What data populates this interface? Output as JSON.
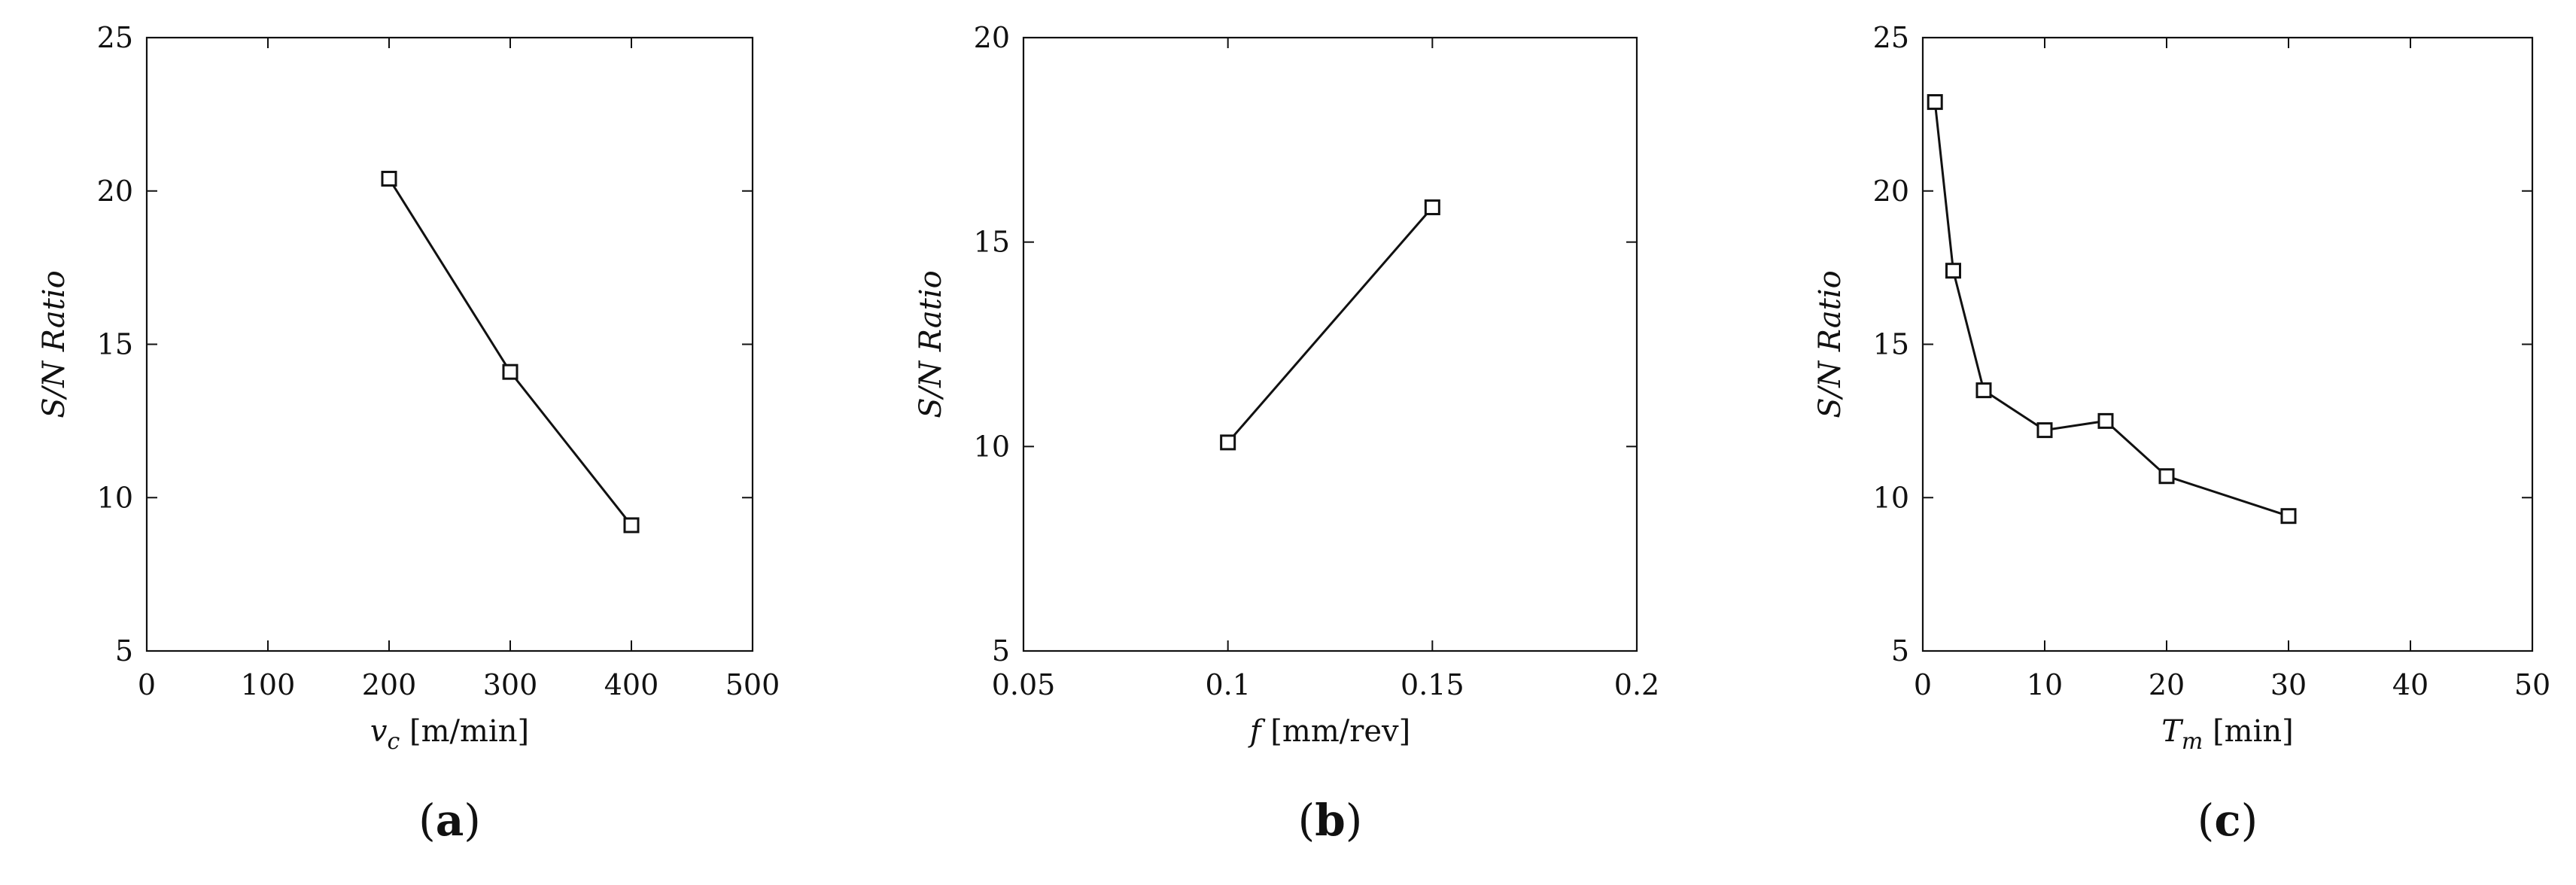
{
  "chart_data": [
    {
      "type": "line",
      "x": [
        200,
        300,
        400
      ],
      "series": [
        {
          "values": [
            20.4,
            14.1,
            9.1
          ]
        }
      ],
      "xlim": [
        0,
        500
      ],
      "ylim": [
        5,
        25
      ],
      "xticks": [
        0,
        100,
        200,
        300,
        400,
        500
      ],
      "yticks": [
        5,
        10,
        15,
        20,
        25
      ],
      "xtick_labels": [
        "0",
        "100",
        "200",
        "300",
        "400",
        "500"
      ],
      "ytick_labels": [
        "5",
        "10",
        "15",
        "20",
        "25"
      ],
      "ylabel": "S/N Ratio",
      "xlabel": {
        "var": "v",
        "sub": "c",
        "unit": " [m/min]"
      },
      "marker": "square",
      "grid": false,
      "caption": {
        "open": "(",
        "letter": "a",
        "close": ")"
      }
    },
    {
      "type": "line",
      "x": [
        0.1,
        0.15
      ],
      "series": [
        {
          "values": [
            10.1,
            15.85
          ]
        }
      ],
      "xlim": [
        0.05,
        0.2
      ],
      "ylim": [
        5,
        20
      ],
      "xticks": [
        0.05,
        0.1,
        0.15,
        0.2
      ],
      "yticks": [
        5,
        10,
        15,
        20
      ],
      "xtick_labels": [
        "0.05",
        "0.1",
        "0.15",
        "0.2"
      ],
      "ytick_labels": [
        "5",
        "10",
        "15",
        "20"
      ],
      "ylabel": "S/N Ratio",
      "xlabel": {
        "var": "f",
        "sub": "",
        "unit": " [mm/rev]"
      },
      "marker": "square",
      "grid": false,
      "caption": {
        "open": "(",
        "letter": "b",
        "close": ")"
      }
    },
    {
      "type": "line",
      "x": [
        1,
        2.5,
        5,
        10,
        15,
        20,
        30
      ],
      "series": [
        {
          "values": [
            22.9,
            17.4,
            13.5,
            12.2,
            12.5,
            10.7,
            9.4
          ]
        }
      ],
      "xlim": [
        0,
        50
      ],
      "ylim": [
        5,
        25
      ],
      "xticks": [
        0,
        10,
        20,
        30,
        40,
        50
      ],
      "yticks": [
        5,
        10,
        15,
        20,
        25
      ],
      "xtick_labels": [
        "0",
        "10",
        "20",
        "30",
        "40",
        "50"
      ],
      "ytick_labels": [
        "5",
        "10",
        "15",
        "20",
        "25"
      ],
      "ylabel": "S/N Ratio",
      "xlabel": {
        "var": "T",
        "sub": "m",
        "unit": " [min]"
      },
      "marker": "square",
      "grid": false,
      "caption": {
        "open": "(",
        "letter": "c",
        "close": ")"
      }
    }
  ]
}
